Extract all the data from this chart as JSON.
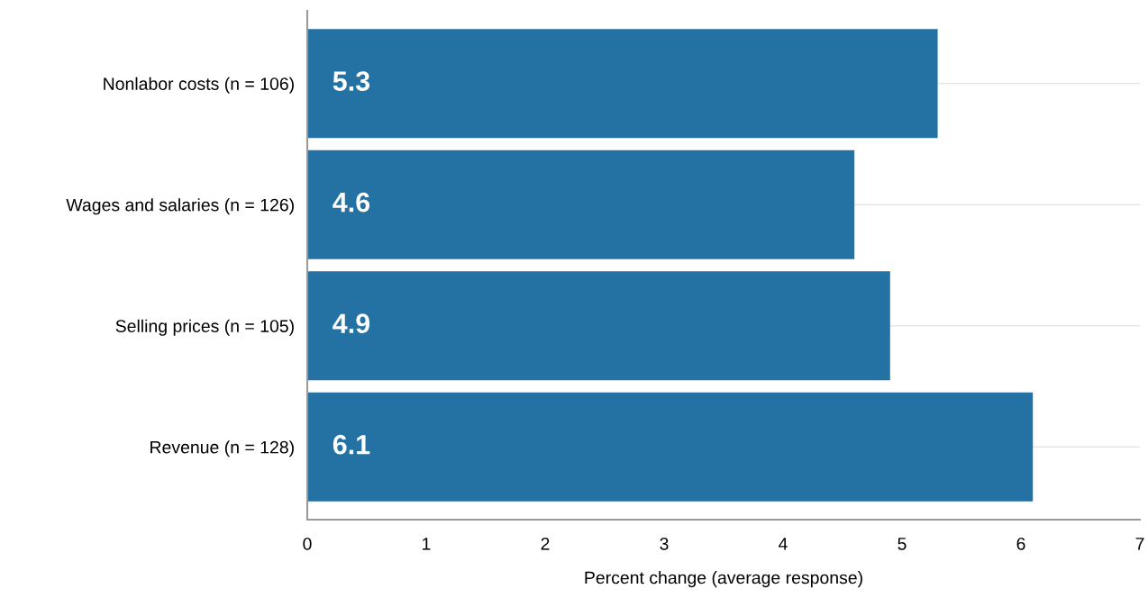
{
  "chart_data": {
    "type": "bar",
    "orientation": "horizontal",
    "categories": [
      "Nonlabor costs (n = 106)",
      "Wages and salaries (n = 126)",
      "Selling prices (n = 105)",
      "Revenue (n = 128)"
    ],
    "values": [
      5.3,
      4.6,
      4.9,
      6.1
    ],
    "color": "#2472a4",
    "xlabel": "Percent change (average response)",
    "xlim": [
      0,
      7
    ],
    "xticks": [
      0,
      1,
      2,
      3,
      4,
      5,
      6,
      7
    ],
    "grid": "y",
    "data_labels": true
  }
}
